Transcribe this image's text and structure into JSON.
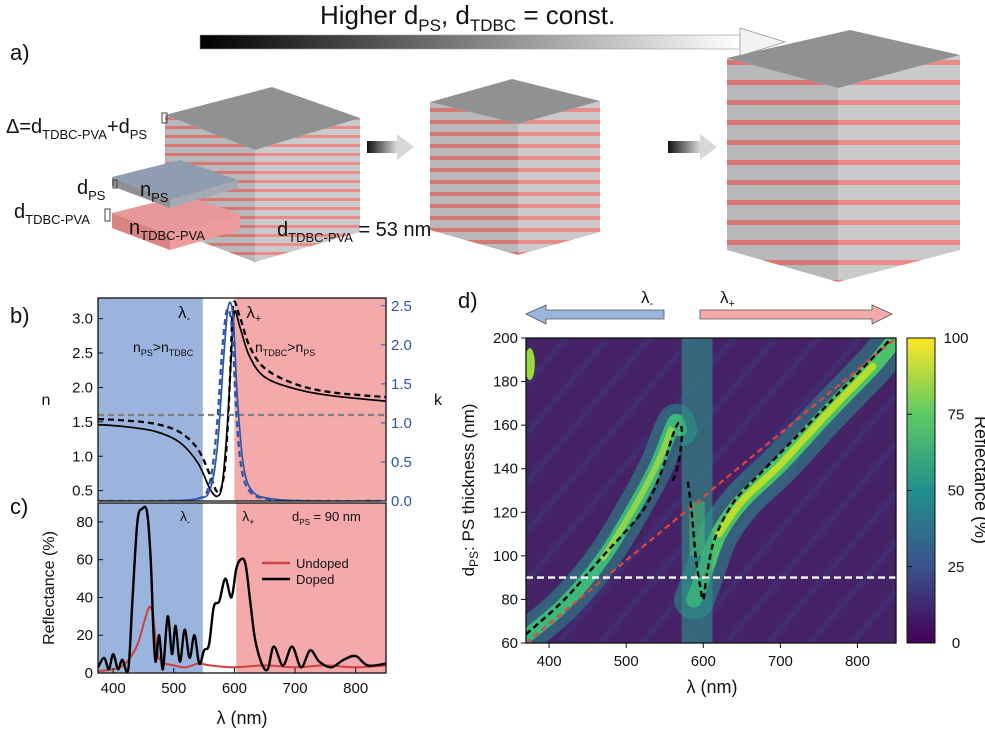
{
  "figure": {
    "header": {
      "main": "Higher d",
      "sub1": "PS",
      "mid": ", d",
      "sub2": "TDBC",
      "tail": " = const."
    },
    "panel_labels": {
      "a": "a)",
      "b": "b)",
      "c": "c)",
      "d": "d)"
    },
    "stack_annotations": {
      "delta_pre": "Δ=d",
      "delta_sub1": "TDBC-PVA",
      "delta_plus": "+d",
      "delta_sub2": "PS",
      "dps_main": "d",
      "dps_sub": "PS",
      "nps_main": "n",
      "nps_sub": "PS",
      "dtdbc_main": "d",
      "dtdbc_sub": "TDBC-PVA",
      "ntdbc_main": "n",
      "ntdbc_sub": "TDBC-PVA",
      "fixed_main": "d",
      "fixed_sub": "TDBC-PVA",
      "fixed_value": " = 53 nm"
    },
    "colors": {
      "region_blue": "#9bb4dd",
      "region_red": "#f4aaab",
      "layer_grey": "#c9cacc",
      "layer_red": "#ec8a88",
      "k_curve": "#2f56a8",
      "undoped": "#cc4040",
      "dashed_grey": "#808080"
    }
  },
  "chart_data": [
    {
      "id": "b",
      "type": "line",
      "title": "",
      "xlabel": "",
      "ylabel": "n",
      "y2label": "k",
      "xlim": [
        375,
        850
      ],
      "ylim": [
        0.35,
        3.3
      ],
      "y2lim": [
        0.0,
        2.6
      ],
      "yticks": [
        "0.5",
        "1.0",
        "1.5",
        "2.0",
        "2.5",
        "3.0"
      ],
      "y2ticks": [
        "0.0",
        "0.5",
        "1.0",
        "1.5",
        "2.0",
        "2.5"
      ],
      "regions": [
        {
          "from": 375,
          "to": 548,
          "label": "λ",
          "label_sub": "-",
          "color": "#9bb4dd"
        },
        {
          "from": 548,
          "to": 600,
          "label": "",
          "label_sub": "",
          "color": "#ffffff"
        },
        {
          "from": 600,
          "to": 850,
          "label": "λ",
          "label_sub": "+",
          "color": "#f4aaab"
        }
      ],
      "region_notes": [
        {
          "a": "n",
          "a_sub": "PS",
          "rel": ">",
          "b": "n",
          "b_sub": "TDBC"
        },
        {
          "a": "n",
          "a_sub": "TDBC",
          "rel": ">",
          "b": "n",
          "b_sub": "PS"
        }
      ],
      "series": [
        {
          "name": "n (solid)",
          "axis": "left",
          "style": "solid",
          "color": "#000000",
          "x": [
            375,
            420,
            470,
            510,
            540,
            560,
            572,
            580,
            588,
            595,
            600,
            610,
            625,
            650,
            700,
            760,
            850
          ],
          "y": [
            1.46,
            1.43,
            1.36,
            1.2,
            0.9,
            0.52,
            0.42,
            0.6,
            1.4,
            2.5,
            3.1,
            2.85,
            2.45,
            2.15,
            1.98,
            1.88,
            1.8
          ]
        },
        {
          "name": "n (dashed)",
          "axis": "left",
          "style": "dashed",
          "color": "#000000",
          "x": [
            375,
            420,
            470,
            510,
            540,
            560,
            570,
            578,
            586,
            593,
            598,
            608,
            625,
            650,
            700,
            760,
            850
          ],
          "y": [
            1.54,
            1.52,
            1.47,
            1.35,
            1.1,
            0.72,
            0.5,
            0.52,
            1.0,
            2.2,
            3.2,
            3.05,
            2.6,
            2.28,
            2.05,
            1.93,
            1.86
          ]
        },
        {
          "name": "n const",
          "axis": "left",
          "style": "dashed",
          "color": "#808080",
          "x": [
            375,
            850
          ],
          "y": [
            1.6,
            1.6
          ]
        },
        {
          "name": "k (solid)",
          "axis": "right",
          "style": "solid",
          "color": "#2f56a8",
          "x": [
            375,
            480,
            540,
            560,
            572,
            582,
            590,
            598,
            605,
            615,
            630,
            660,
            720,
            850
          ],
          "y": [
            0.0,
            0.0,
            0.03,
            0.15,
            0.7,
            1.8,
            2.5,
            2.35,
            1.3,
            0.45,
            0.12,
            0.03,
            0.0,
            0.0
          ]
        },
        {
          "name": "k (dashed)",
          "axis": "right",
          "style": "dashed",
          "color": "#2f56a8",
          "x": [
            375,
            480,
            540,
            558,
            570,
            580,
            588,
            596,
            603,
            612,
            628,
            660,
            720,
            850
          ],
          "y": [
            0.0,
            0.0,
            0.03,
            0.2,
            0.85,
            1.95,
            2.45,
            2.2,
            1.15,
            0.4,
            0.1,
            0.02,
            0.0,
            0.0
          ]
        }
      ]
    },
    {
      "id": "c",
      "type": "line",
      "title": "",
      "xlabel": "λ (nm)",
      "ylabel": "Reflectance (%)",
      "xlim": [
        375,
        850
      ],
      "ylim": [
        0,
        90
      ],
      "xticks": [
        "400",
        "500",
        "600",
        "700",
        "800"
      ],
      "yticks": [
        "0",
        "20",
        "40",
        "60",
        "80"
      ],
      "regions": [
        {
          "from": 375,
          "to": 548,
          "label": "λ",
          "label_sub": "-",
          "color": "#9bb4dd"
        },
        {
          "from": 548,
          "to": 603,
          "label": "",
          "label_sub": "",
          "color": "#ffffff"
        },
        {
          "from": 603,
          "to": 850,
          "label": "λ",
          "label_sub": "+",
          "color": "#f4aaab"
        }
      ],
      "annotation": {
        "main": "d",
        "sub": "PS",
        "value": " = 90 nm"
      },
      "legend": [
        "Undoped",
        "Doped"
      ],
      "series": [
        {
          "name": "Undoped",
          "color": "#cc4040",
          "x": [
            375,
            400,
            420,
            440,
            452,
            460,
            466,
            472,
            480,
            500,
            520,
            540,
            560,
            600,
            650,
            700,
            750,
            800,
            850
          ],
          "y": [
            1,
            2,
            5,
            15,
            28,
            35,
            30,
            12,
            6,
            4,
            3,
            5,
            4,
            3,
            4,
            3,
            4,
            3,
            4
          ]
        },
        {
          "name": "Doped",
          "color": "#000000",
          "x": [
            375,
            385,
            393,
            400,
            408,
            415,
            425,
            432,
            440,
            448,
            456,
            462,
            466,
            470,
            476,
            482,
            490,
            497,
            503,
            510,
            518,
            526,
            534,
            542,
            550,
            558,
            566,
            575,
            585,
            595,
            603,
            610,
            618,
            626,
            634,
            645,
            655,
            665,
            680,
            695,
            710,
            725,
            740,
            760,
            780,
            800,
            820,
            850
          ],
          "y": [
            3,
            8,
            2,
            10,
            2,
            7,
            2,
            40,
            80,
            87,
            85,
            60,
            25,
            6,
            20,
            2,
            30,
            10,
            25,
            6,
            23,
            8,
            20,
            5,
            12,
            15,
            35,
            38,
            50,
            40,
            55,
            60,
            58,
            38,
            18,
            5,
            2,
            14,
            4,
            14,
            3,
            12,
            6,
            3,
            7,
            9,
            4,
            5
          ]
        }
      ]
    },
    {
      "id": "d",
      "type": "heatmap",
      "title": "",
      "xlabel": "λ (nm)",
      "ylabel": "d",
      "ylabel_sub": "PS",
      "ylabel_tail": ": PS thickness (nm)",
      "xlim": [
        370,
        850
      ],
      "ylim": [
        60,
        200
      ],
      "xticks": [
        "400",
        "500",
        "600",
        "700",
        "800"
      ],
      "yticks": [
        "60",
        "80",
        "100",
        "120",
        "140",
        "160",
        "180",
        "200"
      ],
      "colorbar": {
        "label": "Reflectance (%)",
        "ticks": [
          "0",
          "25",
          "50",
          "75",
          "100"
        ],
        "stops": [
          "#440154",
          "#3b528b",
          "#21908d",
          "#5dc963",
          "#fde725"
        ]
      },
      "arrows": [
        {
          "label": "λ",
          "sub": "-",
          "direction": "left",
          "color": "#9bb4dd"
        },
        {
          "label": "λ",
          "sub": "+",
          "direction": "right",
          "color": "#f4aaab"
        }
      ],
      "lower_branch": {
        "x": [
          370,
          420,
          470,
          510,
          540,
          558,
          565,
          570
        ],
        "y": [
          63,
          78,
          99,
          122,
          142,
          158,
          162,
          158
        ]
      },
      "upper_branch": {
        "x": [
          588,
          595,
          605,
          620,
          650,
          700,
          760,
          820,
          850
        ],
        "y": [
          80,
          86,
          96,
          110,
          125,
          142,
          165,
          187,
          200
        ]
      },
      "dashed_black_lower": {
        "x": [
          370,
          420,
          470,
          520,
          545,
          560,
          568,
          572,
          571,
          566,
          560
        ],
        "y": [
          64,
          80,
          100,
          120,
          138,
          155,
          161,
          158,
          150,
          140,
          134
        ]
      },
      "dashed_black_upper": {
        "x": [
          580,
          585,
          590,
          596,
          600,
          605,
          615,
          640,
          680,
          730,
          790,
          850
        ],
        "y": [
          134,
          120,
          100,
          86,
          80,
          92,
          108,
          125,
          140,
          158,
          180,
          202
        ]
      },
      "dashed_red": {
        "x": [
          370,
          850
        ],
        "y": [
          60,
          200
        ]
      },
      "dashed_white": {
        "x": [
          370,
          850
        ],
        "y": [
          90,
          90
        ]
      }
    }
  ]
}
